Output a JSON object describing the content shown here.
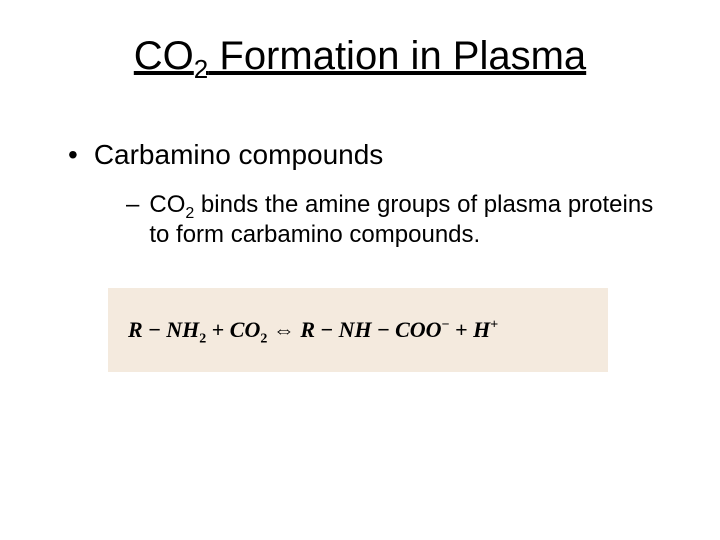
{
  "title": {
    "pre": "CO",
    "sub": "2",
    "post": "  Formation in Plasma"
  },
  "bullet1": {
    "marker": "•",
    "text": "Carbamino compounds"
  },
  "bullet2": {
    "marker": "–",
    "pre": " CO",
    "sub": "2",
    "post": " binds the amine groups of plasma proteins to form carbamino compounds."
  },
  "equation": {
    "bg_color": "#f4eade",
    "parts": {
      "p1": "R",
      "p2": " − ",
      "p3": "NH",
      "p4_sub": "2",
      "p5": " + ",
      "p6": "CO",
      "p7_sub": "2",
      "p8": " ⇔ ",
      "p9": "R",
      "p10": " − ",
      "p11": "NH",
      "p12": " − ",
      "p13": "COO",
      "p14_sup": "−",
      "p15": " + ",
      "p16": "H",
      "p17_sup": "+"
    }
  }
}
